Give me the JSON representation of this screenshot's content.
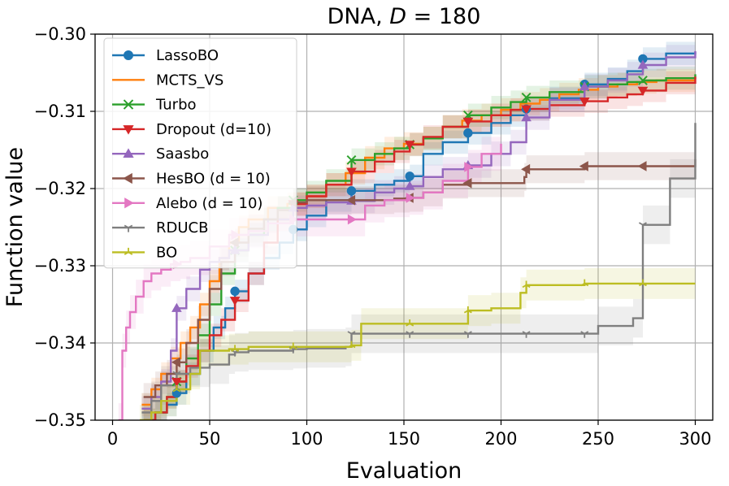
{
  "chart_data": {
    "type": "line",
    "title": "DNA, D = 180",
    "title_parts": {
      "prefix": "DNA, ",
      "variable": "D",
      "suffix": " = 180"
    },
    "xlabel": "Evaluation",
    "ylabel": "Function value",
    "xlim": [
      -9,
      309
    ],
    "ylim": [
      -0.35,
      -0.3
    ],
    "xticks": [
      0,
      50,
      100,
      150,
      200,
      250,
      300
    ],
    "xtick_labels": [
      "0",
      "50",
      "100",
      "150",
      "200",
      "250",
      "300"
    ],
    "yticks": [
      -0.35,
      -0.34,
      -0.33,
      -0.32,
      -0.31,
      -0.3
    ],
    "ytick_labels": [
      "−0.35",
      "−0.34",
      "−0.33",
      "−0.32",
      "−0.31",
      "−0.30"
    ],
    "grid": true,
    "legend_position": "top-left",
    "series": [
      {
        "name": "LassoBO",
        "color": "#1f77b4",
        "marker": "circle",
        "x": [
          15,
          22,
          28,
          33,
          38,
          45,
          52,
          58,
          63,
          70,
          78,
          86,
          93,
          100,
          110,
          123,
          135,
          145,
          153,
          160,
          170,
          183,
          195,
          205,
          213,
          225,
          243,
          255,
          265,
          273,
          285,
          300
        ],
        "y": [
          -0.3505,
          -0.349,
          -0.348,
          -0.3465,
          -0.344,
          -0.341,
          -0.338,
          -0.3355,
          -0.3333,
          -0.331,
          -0.329,
          -0.327,
          -0.3253,
          -0.3235,
          -0.3215,
          -0.3203,
          -0.3195,
          -0.319,
          -0.3184,
          -0.3155,
          -0.314,
          -0.3128,
          -0.3115,
          -0.3105,
          -0.3097,
          -0.3083,
          -0.3065,
          -0.3058,
          -0.3048,
          -0.3032,
          -0.3025,
          -0.3023
        ],
        "band": 0.0015
      },
      {
        "name": "MCTS_VS",
        "color": "#ff7f0e",
        "marker": "none",
        "x": [
          15,
          20,
          25,
          30,
          35,
          40,
          45,
          50,
          55,
          60,
          65,
          70,
          80,
          90,
          100,
          110,
          120,
          130,
          140,
          150,
          160,
          170,
          180,
          190,
          200,
          210,
          220,
          230,
          240,
          250,
          260,
          270,
          280,
          290,
          300
        ],
        "y": [
          -0.348,
          -0.346,
          -0.344,
          -0.342,
          -0.34,
          -0.338,
          -0.335,
          -0.332,
          -0.329,
          -0.327,
          -0.325,
          -0.324,
          -0.3225,
          -0.322,
          -0.321,
          -0.3195,
          -0.318,
          -0.316,
          -0.3148,
          -0.3142,
          -0.3135,
          -0.312,
          -0.3112,
          -0.3105,
          -0.3098,
          -0.309,
          -0.3085,
          -0.3078,
          -0.3072,
          -0.3068,
          -0.3065,
          -0.3062,
          -0.306,
          -0.306,
          -0.306
        ],
        "band": 0.0015
      },
      {
        "name": "Turbo",
        "color": "#2ca02c",
        "marker": "x",
        "x": [
          16,
          22,
          28,
          33,
          38,
          44,
          50,
          56,
          63,
          70,
          78,
          85,
          93,
          100,
          110,
          123,
          135,
          145,
          153,
          160,
          170,
          183,
          195,
          205,
          213,
          225,
          243,
          255,
          265,
          273,
          285,
          300
        ],
        "y": [
          -0.35,
          -0.349,
          -0.347,
          -0.345,
          -0.342,
          -0.339,
          -0.335,
          -0.331,
          -0.328,
          -0.326,
          -0.324,
          -0.3225,
          -0.3215,
          -0.3205,
          -0.319,
          -0.3163,
          -0.3155,
          -0.3148,
          -0.3143,
          -0.3135,
          -0.312,
          -0.3105,
          -0.3095,
          -0.3088,
          -0.3082,
          -0.3075,
          -0.3068,
          -0.3065,
          -0.3062,
          -0.306,
          -0.3057,
          -0.3052
        ],
        "band": 0.0015
      },
      {
        "name": "Dropout (d=10)",
        "color": "#d62728",
        "marker": "triangle-down",
        "x": [
          16,
          22,
          28,
          33,
          38,
          44,
          50,
          56,
          63,
          70,
          78,
          85,
          93,
          100,
          110,
          123,
          135,
          145,
          153,
          160,
          170,
          183,
          195,
          205,
          213,
          225,
          243,
          255,
          265,
          273,
          285,
          300
        ],
        "y": [
          -0.35,
          -0.349,
          -0.347,
          -0.345,
          -0.343,
          -0.341,
          -0.339,
          -0.337,
          -0.3345,
          -0.331,
          -0.327,
          -0.324,
          -0.322,
          -0.321,
          -0.3195,
          -0.3178,
          -0.3165,
          -0.3152,
          -0.3143,
          -0.3133,
          -0.312,
          -0.3113,
          -0.3105,
          -0.3098,
          -0.3097,
          -0.3092,
          -0.3087,
          -0.3082,
          -0.3078,
          -0.3073,
          -0.3063,
          -0.3055
        ],
        "band": 0.0015
      },
      {
        "name": "Saasbo",
        "color": "#9467bd",
        "marker": "triangle-up",
        "x": [
          15,
          20,
          25,
          30,
          33,
          38,
          45,
          50,
          55,
          60,
          70,
          80,
          93,
          100,
          110,
          123,
          135,
          145,
          153,
          160,
          170,
          183,
          195,
          205,
          213,
          225,
          243,
          255,
          265,
          273,
          285,
          300
        ],
        "y": [
          -0.3485,
          -0.347,
          -0.345,
          -0.341,
          -0.3355,
          -0.333,
          -0.3305,
          -0.3295,
          -0.329,
          -0.328,
          -0.326,
          -0.324,
          -0.3225,
          -0.3222,
          -0.3218,
          -0.3216,
          -0.3205,
          -0.32,
          -0.3197,
          -0.3185,
          -0.3175,
          -0.317,
          -0.3155,
          -0.314,
          -0.3108,
          -0.3085,
          -0.3068,
          -0.306,
          -0.3052,
          -0.304,
          -0.303,
          -0.3022
        ],
        "band": 0.0016
      },
      {
        "name": "HesBO (d = 10)",
        "color": "#8c564b",
        "marker": "triangle-left",
        "x": [
          16,
          22,
          28,
          33,
          38,
          44,
          50,
          56,
          63,
          70,
          78,
          85,
          93,
          100,
          110,
          123,
          135,
          145,
          153,
          160,
          170,
          183,
          195,
          205,
          212,
          213,
          230,
          243,
          255,
          273,
          300
        ],
        "y": [
          -0.347,
          -0.3455,
          -0.344,
          -0.3425,
          -0.34,
          -0.337,
          -0.333,
          -0.3295,
          -0.327,
          -0.3252,
          -0.324,
          -0.3228,
          -0.3218,
          -0.3215,
          -0.3215,
          -0.3215,
          -0.3215,
          -0.3213,
          -0.3212,
          -0.3205,
          -0.3195,
          -0.3193,
          -0.3193,
          -0.3193,
          -0.3185,
          -0.3175,
          -0.3175,
          -0.3171,
          -0.3171,
          -0.3171,
          -0.3162
        ],
        "band": 0.0018
      },
      {
        "name": "Alebo (d = 10)",
        "color": "#e377c2",
        "marker": "triangle-right",
        "x": [
          3,
          5,
          7,
          9,
          12,
          16,
          20,
          25,
          30,
          35,
          40,
          50,
          60,
          70,
          80,
          93,
          100,
          110,
          123,
          130,
          140,
          153,
          160,
          170,
          183,
          190,
          200
        ],
        "y": [
          -0.35,
          -0.341,
          -0.338,
          -0.336,
          -0.334,
          -0.332,
          -0.331,
          -0.3305,
          -0.3298,
          -0.3295,
          -0.329,
          -0.3275,
          -0.326,
          -0.3255,
          -0.3245,
          -0.324,
          -0.324,
          -0.324,
          -0.324,
          -0.3222,
          -0.3215,
          -0.3212,
          -0.3205,
          -0.319,
          -0.3172,
          -0.3155,
          -0.3142
        ],
        "band": 0.0022
      },
      {
        "name": "RDUCB",
        "color": "#7f7f7f",
        "marker": "tri-down",
        "x": [
          15,
          20,
          25,
          33,
          40,
          50,
          60,
          63,
          70,
          80,
          93,
          100,
          110,
          120,
          123,
          130,
          140,
          153,
          170,
          183,
          200,
          213,
          230,
          243,
          250,
          260,
          268,
          273,
          280,
          287,
          295,
          300
        ],
        "y": [
          -0.349,
          -0.3475,
          -0.3455,
          -0.344,
          -0.3432,
          -0.3428,
          -0.3415,
          -0.3412,
          -0.341,
          -0.341,
          -0.3408,
          -0.3407,
          -0.3407,
          -0.3405,
          -0.3388,
          -0.3388,
          -0.3388,
          -0.3388,
          -0.3388,
          -0.3388,
          -0.3388,
          -0.3388,
          -0.3388,
          -0.3388,
          -0.3378,
          -0.3378,
          -0.3368,
          -0.3247,
          -0.3247,
          -0.3187,
          -0.3187,
          -0.3115
        ],
        "band": 0.0025
      },
      {
        "name": "BO",
        "color": "#bcbd22",
        "marker": "tri-up",
        "x": [
          14,
          20,
          25,
          33,
          40,
          45,
          50,
          60,
          63,
          70,
          80,
          93,
          100,
          110,
          123,
          128,
          140,
          153,
          170,
          180,
          183,
          195,
          200,
          210,
          213,
          230,
          243,
          260,
          273,
          290,
          300
        ],
        "y": [
          -0.35,
          -0.349,
          -0.3475,
          -0.346,
          -0.344,
          -0.341,
          -0.341,
          -0.3408,
          -0.3408,
          -0.3405,
          -0.3405,
          -0.3405,
          -0.3405,
          -0.3405,
          -0.3403,
          -0.3375,
          -0.3375,
          -0.3375,
          -0.3375,
          -0.3375,
          -0.3358,
          -0.3355,
          -0.3355,
          -0.3335,
          -0.3325,
          -0.3325,
          -0.3323,
          -0.3323,
          -0.3323,
          -0.3323,
          -0.3323
        ],
        "band": 0.002
      }
    ]
  }
}
